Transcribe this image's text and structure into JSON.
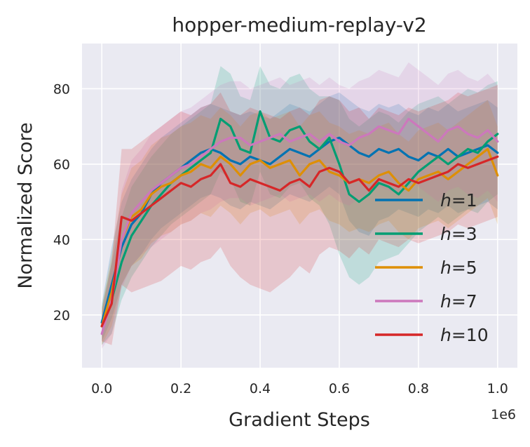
{
  "chart_data": {
    "type": "line",
    "title": "hopper-medium-replay-v2",
    "xlabel": "Gradient Steps",
    "ylabel": "Normalized Score",
    "x_offset_label": "1e6",
    "xlim": [
      -0.05,
      1.05
    ],
    "ylim": [
      6,
      92
    ],
    "xticks": [
      0.0,
      0.2,
      0.4,
      0.6,
      0.8,
      1.0
    ],
    "xtick_labels": [
      "0.0",
      "0.2",
      "0.4",
      "0.6",
      "0.8",
      "1.0"
    ],
    "yticks": [
      20,
      40,
      60,
      80
    ],
    "ytick_labels": [
      "20",
      "40",
      "60",
      "80"
    ],
    "grid": true,
    "legend_position": "lower-right",
    "style": "seaborn-darkgrid",
    "colors": {
      "background": "#eaeaf2",
      "grid": "#ffffff"
    },
    "x": [
      0.0,
      0.025,
      0.05,
      0.075,
      0.1,
      0.125,
      0.15,
      0.175,
      0.2,
      0.225,
      0.25,
      0.275,
      0.3,
      0.325,
      0.35,
      0.375,
      0.4,
      0.425,
      0.45,
      0.475,
      0.5,
      0.525,
      0.55,
      0.575,
      0.6,
      0.625,
      0.65,
      0.675,
      0.7,
      0.725,
      0.75,
      0.775,
      0.8,
      0.825,
      0.85,
      0.875,
      0.9,
      0.925,
      0.95,
      0.975,
      1.0
    ],
    "series": [
      {
        "name": "h=1",
        "legend_prefix": "h",
        "legend_suffix": "=1",
        "color": "#0173b2",
        "values": [
          18,
          28,
          38,
          44,
          47,
          52,
          55,
          57,
          59,
          61,
          63,
          64,
          63,
          61,
          60,
          62,
          61,
          60,
          62,
          64,
          63,
          62,
          64,
          66,
          67,
          65,
          63,
          62,
          64,
          63,
          64,
          62,
          61,
          63,
          62,
          64,
          62,
          63,
          64,
          65,
          63
        ],
        "lower": [
          13,
          19,
          28,
          33,
          36,
          40,
          43,
          45,
          47,
          49,
          51,
          52,
          51,
          49,
          48,
          50,
          49,
          48,
          50,
          52,
          51,
          50,
          52,
          54,
          52,
          45,
          42,
          41,
          45,
          46,
          48,
          47,
          46,
          48,
          47,
          49,
          47,
          48,
          49,
          50,
          48
        ],
        "upper": [
          23,
          38,
          50,
          56,
          60,
          64,
          67,
          69,
          71,
          73,
          75,
          76,
          75,
          74,
          73,
          74,
          73,
          72,
          74,
          76,
          75,
          74,
          76,
          78,
          79,
          77,
          75,
          74,
          76,
          75,
          76,
          74,
          73,
          75,
          74,
          76,
          74,
          75,
          76,
          77,
          75
        ]
      },
      {
        "name": "h=3",
        "legend_prefix": "h",
        "legend_suffix": "=3",
        "color": "#029e73",
        "values": [
          17,
          24,
          34,
          41,
          45,
          49,
          52,
          55,
          57,
          59,
          61,
          63,
          72,
          70,
          64,
          63,
          74,
          67,
          66,
          69,
          70,
          66,
          64,
          67,
          60,
          52,
          50,
          52,
          55,
          54,
          52,
          55,
          58,
          60,
          62,
          60,
          62,
          64,
          63,
          66,
          68
        ],
        "lower": [
          12,
          15,
          24,
          30,
          34,
          38,
          41,
          44,
          46,
          48,
          50,
          52,
          58,
          56,
          50,
          49,
          58,
          52,
          51,
          54,
          55,
          51,
          49,
          44,
          36,
          30,
          28,
          30,
          34,
          35,
          36,
          39,
          42,
          44,
          46,
          44,
          46,
          48,
          47,
          50,
          52
        ],
        "upper": [
          22,
          34,
          46,
          54,
          58,
          62,
          65,
          68,
          70,
          72,
          74,
          76,
          86,
          84,
          78,
          77,
          86,
          81,
          80,
          83,
          84,
          80,
          78,
          78,
          77,
          72,
          70,
          72,
          74,
          73,
          71,
          74,
          76,
          77,
          78,
          76,
          78,
          80,
          79,
          81,
          82
        ]
      },
      {
        "name": "h=5",
        "legend_prefix": "h",
        "legend_suffix": "=5",
        "color": "#de8f05",
        "values": [
          17,
          26,
          40,
          46,
          48,
          52,
          54,
          55,
          57,
          58,
          60,
          59,
          62,
          60,
          57,
          60,
          61,
          59,
          60,
          61,
          57,
          60,
          61,
          58,
          57,
          55,
          56,
          55,
          57,
          58,
          55,
          53,
          56,
          57,
          58,
          56,
          58,
          60,
          62,
          64,
          57
        ],
        "lower": [
          12,
          17,
          28,
          33,
          35,
          39,
          41,
          42,
          44,
          45,
          47,
          46,
          49,
          47,
          44,
          47,
          48,
          46,
          47,
          48,
          44,
          47,
          48,
          45,
          44,
          42,
          43,
          42,
          44,
          45,
          42,
          40,
          43,
          44,
          45,
          43,
          45,
          47,
          49,
          51,
          44
        ],
        "upper": [
          22,
          36,
          52,
          59,
          61,
          65,
          67,
          68,
          70,
          71,
          73,
          72,
          75,
          73,
          70,
          73,
          74,
          72,
          73,
          74,
          70,
          73,
          74,
          71,
          70,
          68,
          69,
          68,
          70,
          71,
          68,
          66,
          69,
          70,
          71,
          69,
          71,
          73,
          75,
          77,
          70
        ]
      },
      {
        "name": "h=7",
        "legend_prefix": "h",
        "legend_suffix": "=7",
        "color": "#cc78bc",
        "values": [
          15,
          24,
          40,
          47,
          50,
          53,
          55,
          57,
          59,
          60,
          62,
          64,
          66,
          67,
          67,
          65,
          66,
          67,
          68,
          66,
          67,
          68,
          66,
          68,
          66,
          65,
          67,
          68,
          70,
          69,
          68,
          72,
          70,
          68,
          66,
          69,
          70,
          68,
          67,
          69,
          66
        ],
        "lower": [
          11,
          15,
          27,
          33,
          36,
          38,
          40,
          42,
          44,
          45,
          47,
          48,
          50,
          51,
          51,
          49,
          50,
          51,
          52,
          50,
          51,
          52,
          50,
          52,
          50,
          49,
          51,
          52,
          54,
          53,
          52,
          56,
          54,
          52,
          50,
          53,
          54,
          52,
          51,
          53,
          50
        ],
        "upper": [
          19,
          33,
          53,
          61,
          64,
          68,
          70,
          72,
          74,
          75,
          77,
          79,
          81,
          82,
          82,
          80,
          81,
          82,
          83,
          81,
          82,
          83,
          81,
          83,
          81,
          80,
          82,
          83,
          85,
          84,
          83,
          87,
          85,
          83,
          81,
          84,
          85,
          83,
          82,
          84,
          81
        ]
      },
      {
        "name": "h=10",
        "legend_prefix": "h",
        "legend_suffix": "=10",
        "color": "#d62728",
        "values": [
          17,
          23,
          46,
          45,
          47,
          49,
          51,
          53,
          55,
          54,
          56,
          57,
          60,
          55,
          54,
          56,
          55,
          54,
          53,
          55,
          56,
          54,
          58,
          59,
          58,
          55,
          56,
          53,
          56,
          55,
          54,
          56,
          55,
          56,
          57,
          58,
          60,
          59,
          60,
          61,
          62
        ],
        "lower": [
          13,
          12,
          28,
          26,
          27,
          28,
          29,
          31,
          33,
          32,
          34,
          35,
          38,
          33,
          30,
          28,
          27,
          26,
          28,
          30,
          33,
          31,
          36,
          38,
          37,
          35,
          38,
          36,
          40,
          39,
          38,
          40,
          39,
          40,
          41,
          42,
          44,
          43,
          44,
          45,
          46
        ],
        "upper": [
          21,
          34,
          64,
          64,
          66,
          68,
          70,
          72,
          74,
          73,
          75,
          76,
          79,
          74,
          73,
          75,
          74,
          73,
          72,
          74,
          75,
          73,
          77,
          78,
          77,
          74,
          75,
          72,
          75,
          74,
          73,
          75,
          74,
          75,
          76,
          77,
          79,
          78,
          79,
          80,
          81
        ]
      }
    ]
  }
}
